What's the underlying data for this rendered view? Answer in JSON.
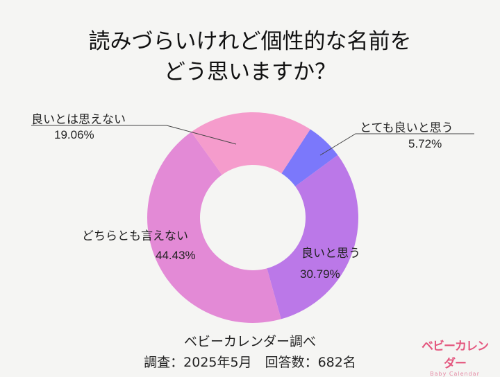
{
  "title": {
    "line1": "読みづらいけれど個性的な名前を",
    "line2": "どう思いますか？"
  },
  "chart_data": {
    "type": "pie",
    "subtype": "donut",
    "title": "読みづらいけれど個性的な名前をどう思いますか？",
    "categories": [
      "とても良いと思う",
      "良いと思う",
      "どちらとも言えない",
      "良いとは思えない"
    ],
    "values": [
      5.72,
      30.79,
      44.43,
      19.06
    ],
    "unit": "%",
    "colors": [
      "#7b78fb",
      "#bb78e8",
      "#e38ad6",
      "#f59ccc"
    ],
    "start_angle_deg": 33,
    "direction": "clockwise"
  },
  "labels": [
    {
      "name": "とても良いと思う",
      "pct": "5.72%"
    },
    {
      "name": "良いと思う",
      "pct": "30.79%"
    },
    {
      "name": "どちらとも言えない",
      "pct": "44.43%"
    },
    {
      "name": "良いとは思えない",
      "pct": "19.06%"
    }
  ],
  "footer": {
    "source": "ベビーカレンダー調べ",
    "survey": "調査：2025年5月　回答数：682名"
  },
  "logo": {
    "jp": "ベビーカレンダー",
    "en": "Baby Calendar"
  }
}
